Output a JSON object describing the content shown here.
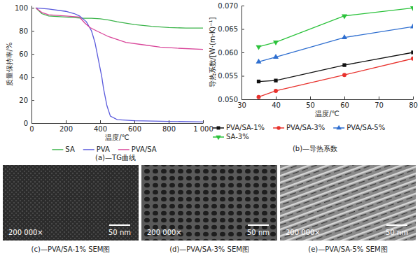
{
  "chart_data": [
    {
      "type": "line",
      "title": "(a)—TG曲线",
      "x_label": "温度/℃",
      "y_label": "质量保持率/%",
      "xlim": [
        0,
        1000
      ],
      "xticks": [
        0,
        200,
        400,
        600,
        800,
        {
          "value": 1000,
          "label": "1 000"
        }
      ],
      "ylim": [
        0,
        102
      ],
      "yticks": [
        0,
        20,
        40,
        60,
        80,
        100
      ],
      "legend": "bottom",
      "series": [
        {
          "name": "SA",
          "color": "#3cb44b",
          "line_style": "solid",
          "x": [
            25,
            60,
            100,
            150,
            200,
            300,
            350,
            400,
            450,
            500,
            600,
            700,
            800,
            900,
            1000
          ],
          "values": [
            100,
            95,
            93,
            92.5,
            92,
            91,
            91,
            90.5,
            89.5,
            88,
            85.5,
            84,
            83,
            82.5,
            82.5
          ]
        },
        {
          "name": "PVA",
          "color": "#5a5adc",
          "line_style": "solid",
          "x": [
            25,
            100,
            200,
            250,
            280,
            320,
            350,
            370,
            390,
            410,
            420,
            440,
            460,
            500,
            600,
            800,
            1000
          ],
          "values": [
            100,
            99,
            97,
            95,
            93,
            88,
            80,
            70,
            55,
            40,
            30,
            15,
            6,
            3,
            2,
            1.5,
            1
          ]
        },
        {
          "name": "PVA/SA",
          "color": "#d9469a",
          "line_style": "solid",
          "x": [
            25,
            60,
            100,
            200,
            280,
            310,
            340,
            380,
            450,
            550,
            650,
            750,
            850,
            1000
          ],
          "values": [
            100,
            96,
            94,
            93,
            92,
            87,
            83,
            80,
            75,
            70,
            68,
            66,
            65,
            64
          ]
        }
      ]
    },
    {
      "type": "line",
      "title": "(b)—导热系数",
      "x_label": "温度/℃",
      "y_label": "导热系数/[W·(m·K)⁻¹]",
      "xlim": [
        30,
        80
      ],
      "xticks": [
        30,
        40,
        50,
        60,
        70,
        80
      ],
      "ylim": [
        0.05,
        0.07
      ],
      "yticks": [
        {
          "value": 0.05,
          "label": "0.050"
        },
        {
          "value": 0.055,
          "label": "0.055"
        },
        {
          "value": 0.06,
          "label": "0.060"
        },
        {
          "value": 0.065,
          "label": "0.065"
        },
        {
          "value": 0.07,
          "label": "0.070"
        }
      ],
      "legend": "bottom",
      "x": [
        35,
        40,
        60,
        80
      ],
      "series": [
        {
          "name": "PVA/SA-1%",
          "color": "#111111",
          "marker": "square",
          "line_style": "solid",
          "values": [
            0.0538,
            0.054,
            0.0573,
            0.06
          ]
        },
        {
          "name": "PVA/SA-3%",
          "color": "#e8322d",
          "marker": "circle",
          "line_style": "solid",
          "values": [
            0.0505,
            0.0518,
            0.0552,
            0.0587
          ]
        },
        {
          "name": "PVA/SA-5%",
          "color": "#2f6fd0",
          "marker": "triangle-up",
          "line_style": "solid",
          "values": [
            0.058,
            0.059,
            0.0632,
            0.0655
          ]
        },
        {
          "name": "SA-3%",
          "color": "#2bc23b",
          "marker": "triangle-down",
          "line_style": "solid",
          "values": [
            0.0612,
            0.0622,
            0.0678,
            0.0695
          ]
        }
      ]
    },
    {
      "type": "image",
      "title": "(c)—PVA/SA-1% SEM图",
      "annotations": [
        "200 000×",
        "50 nm"
      ]
    },
    {
      "type": "image",
      "title": "(d)—PVA/SA-3% SEM图",
      "annotations": [
        "200 000×",
        "50 nm"
      ]
    },
    {
      "type": "image",
      "title": "(e)—PVA/SA-5% SEM图",
      "annotations": [
        "200 000×",
        "50 nm"
      ]
    }
  ]
}
